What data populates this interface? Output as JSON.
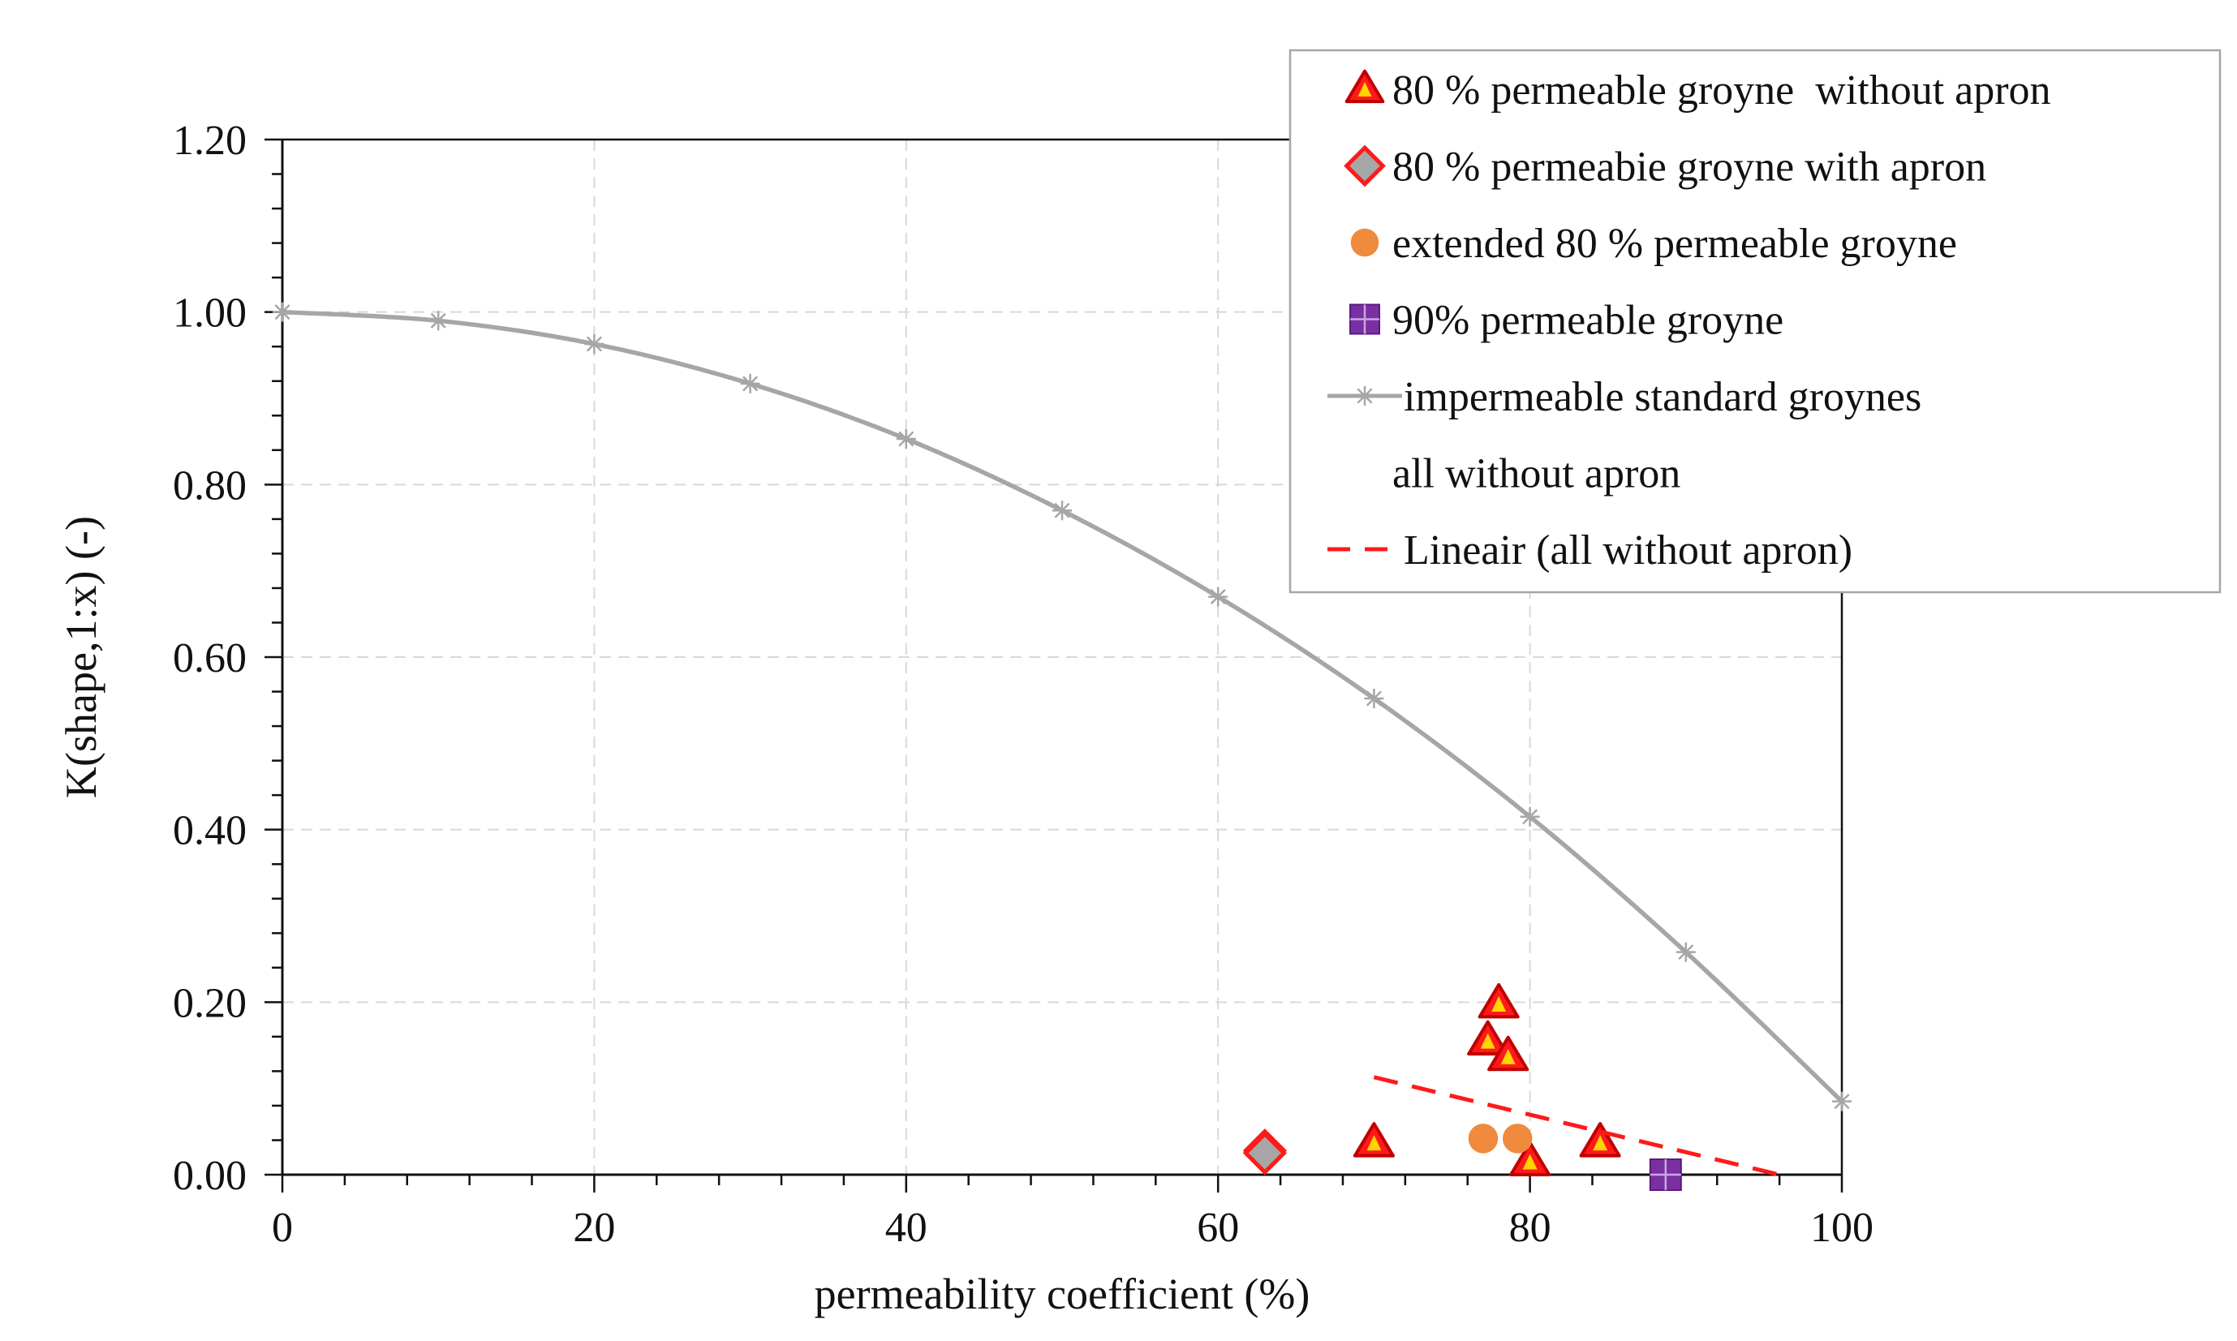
{
  "chart_data": {
    "type": "scatter",
    "title": "",
    "xlabel": "permeability coefficient (%)",
    "ylabel": "K(shape,1:x) (-)",
    "xlim": [
      0,
      100
    ],
    "ylim": [
      0,
      1.2
    ],
    "x_ticks": [
      {
        "value": 0,
        "label": "0"
      },
      {
        "value": 20,
        "label": "20"
      },
      {
        "value": 40,
        "label": "40"
      },
      {
        "value": 60,
        "label": "60"
      },
      {
        "value": 80,
        "label": "80"
      },
      {
        "value": 100,
        "label": "100"
      }
    ],
    "y_ticks": [
      {
        "value": 0,
        "label": "0.00"
      },
      {
        "value": 0.2,
        "label": "0.20"
      },
      {
        "value": 0.4,
        "label": "0.40"
      },
      {
        "value": 0.6,
        "label": "0.60"
      },
      {
        "value": 0.8,
        "label": "0.80"
      },
      {
        "value": 1.0,
        "label": "1.00"
      },
      {
        "value": 1.2,
        "label": "1.20"
      }
    ],
    "grid": true,
    "legend_position": "top-right",
    "series": [
      {
        "name": "80 % permeable groyne  without apron",
        "marker": "triangle",
        "color": "#ff1a1a",
        "edge_color": "#c00000",
        "points": [
          [
            70,
            0.037
          ],
          [
            77.3,
            0.155
          ],
          [
            78,
            0.198
          ],
          [
            78.6,
            0.137
          ],
          [
            80,
            0.015
          ],
          [
            84.5,
            0.037
          ]
        ]
      },
      {
        "name": "80 % permeabie groyne with apron",
        "marker": "diamond",
        "color": "#a6a6a6",
        "edge_color": "#ff1a1a",
        "points": [
          [
            63,
            0.028
          ],
          [
            63,
            0.025
          ]
        ]
      },
      {
        "name": "extended 80 % permeable groyne",
        "marker": "circle",
        "color": "#f08a3c",
        "points": [
          [
            77,
            0.042
          ],
          [
            79.2,
            0.042
          ]
        ]
      },
      {
        "name": "90% permeable groyne",
        "marker": "square",
        "color": "#7a30a0",
        "points": [
          [
            88.7,
            0.0
          ]
        ]
      },
      {
        "name": "impermeable standard groynes",
        "marker": "star-line",
        "color": "#a6a6a6",
        "points": [
          [
            0,
            1.0
          ],
          [
            10,
            0.99
          ],
          [
            20,
            0.963
          ],
          [
            30,
            0.917
          ],
          [
            40,
            0.853
          ],
          [
            50,
            0.77
          ],
          [
            60,
            0.67
          ],
          [
            70,
            0.552
          ],
          [
            80,
            0.415
          ],
          [
            90,
            0.258
          ],
          [
            100,
            0.085
          ]
        ]
      },
      {
        "name": "all without apron",
        "marker": "none",
        "color": "#ffffff",
        "points": []
      },
      {
        "name": "Lineair (all without apron)",
        "marker": "dashed-line",
        "color": "#ff1a1a",
        "points": [
          [
            70,
            0.113
          ],
          [
            96,
            0.0
          ]
        ]
      }
    ]
  }
}
